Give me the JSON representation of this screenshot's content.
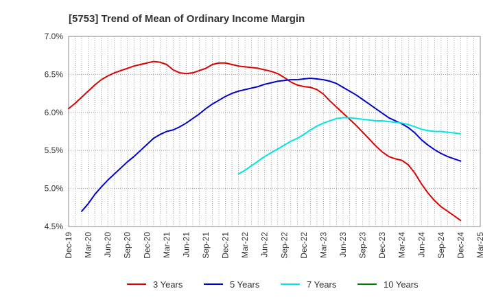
{
  "chart_data": {
    "type": "line",
    "title": "[5753]  Trend of Mean of Ordinary Income Margin",
    "xlabel": "",
    "ylabel": "",
    "x": [
      "Dec-19",
      "Mar-20",
      "Jun-20",
      "Sep-20",
      "Dec-20",
      "Mar-21",
      "Jun-21",
      "Sep-21",
      "Dec-21",
      "Mar-22",
      "Jun-22",
      "Sep-22",
      "Dec-22",
      "Mar-23",
      "Jun-23",
      "Sep-23",
      "Dec-23",
      "Mar-24",
      "Jun-24",
      "Sep-24",
      "Dec-24",
      "Mar-25"
    ],
    "ylim": [
      4.5,
      7.0
    ],
    "yticks": [
      4.5,
      5.0,
      5.5,
      6.0,
      6.5,
      7.0
    ],
    "ytick_labels": [
      "4.5%",
      "5.0%",
      "5.5%",
      "6.0%",
      "6.5%",
      "7.0%"
    ],
    "grid": true,
    "legend_position": "bottom",
    "series": [
      {
        "name": "3 Years",
        "color": "#dd0000",
        "points": [
          [
            "Dec-19",
            6.05
          ],
          [
            "Jan-20",
            6.12
          ],
          [
            "Feb-20",
            6.2
          ],
          [
            "Mar-20",
            6.28
          ],
          [
            "Apr-20",
            6.36
          ],
          [
            "May-20",
            6.43
          ],
          [
            "Jun-20",
            6.48
          ],
          [
            "Jul-20",
            6.52
          ],
          [
            "Aug-20",
            6.55
          ],
          [
            "Sep-20",
            6.58
          ],
          [
            "Oct-20",
            6.61
          ],
          [
            "Nov-20",
            6.63
          ],
          [
            "Dec-20",
            6.65
          ],
          [
            "Jan-21",
            6.67
          ],
          [
            "Feb-21",
            6.66
          ],
          [
            "Mar-21",
            6.63
          ],
          [
            "Apr-21",
            6.56
          ],
          [
            "May-21",
            6.52
          ],
          [
            "Jun-21",
            6.51
          ],
          [
            "Jul-21",
            6.52
          ],
          [
            "Aug-21",
            6.55
          ],
          [
            "Sep-21",
            6.58
          ],
          [
            "Oct-21",
            6.63
          ],
          [
            "Nov-21",
            6.65
          ],
          [
            "Dec-21",
            6.65
          ],
          [
            "Jan-22",
            6.63
          ],
          [
            "Feb-22",
            6.61
          ],
          [
            "Mar-22",
            6.6
          ],
          [
            "Apr-22",
            6.59
          ],
          [
            "May-22",
            6.58
          ],
          [
            "Jun-22",
            6.56
          ],
          [
            "Jul-22",
            6.54
          ],
          [
            "Aug-22",
            6.51
          ],
          [
            "Sep-22",
            6.46
          ],
          [
            "Oct-22",
            6.4
          ],
          [
            "Nov-22",
            6.36
          ],
          [
            "Dec-22",
            6.34
          ],
          [
            "Jan-23",
            6.33
          ],
          [
            "Feb-23",
            6.3
          ],
          [
            "Mar-23",
            6.24
          ],
          [
            "Apr-23",
            6.15
          ],
          [
            "May-23",
            6.07
          ],
          [
            "Jun-23",
            5.99
          ],
          [
            "Jul-23",
            5.91
          ],
          [
            "Aug-23",
            5.83
          ],
          [
            "Sep-23",
            5.74
          ],
          [
            "Oct-23",
            5.65
          ],
          [
            "Nov-23",
            5.56
          ],
          [
            "Dec-23",
            5.48
          ],
          [
            "Jan-24",
            5.42
          ],
          [
            "Feb-24",
            5.39
          ],
          [
            "Mar-24",
            5.37
          ],
          [
            "Apr-24",
            5.31
          ],
          [
            "May-24",
            5.2
          ],
          [
            "Jun-24",
            5.06
          ],
          [
            "Jul-24",
            4.94
          ],
          [
            "Aug-24",
            4.84
          ],
          [
            "Sep-24",
            4.76
          ],
          [
            "Oct-24",
            4.7
          ],
          [
            "Nov-24",
            4.64
          ],
          [
            "Dec-24",
            4.58
          ]
        ]
      },
      {
        "name": "5 Years",
        "color": "#0000cc",
        "points": [
          [
            "Feb-20",
            4.7
          ],
          [
            "Mar-20",
            4.8
          ],
          [
            "Apr-20",
            4.92
          ],
          [
            "May-20",
            5.02
          ],
          [
            "Jun-20",
            5.11
          ],
          [
            "Jul-20",
            5.19
          ],
          [
            "Aug-20",
            5.27
          ],
          [
            "Sep-20",
            5.35
          ],
          [
            "Oct-20",
            5.42
          ],
          [
            "Nov-20",
            5.5
          ],
          [
            "Dec-20",
            5.58
          ],
          [
            "Jan-21",
            5.66
          ],
          [
            "Feb-21",
            5.71
          ],
          [
            "Mar-21",
            5.75
          ],
          [
            "Apr-21",
            5.77
          ],
          [
            "May-21",
            5.81
          ],
          [
            "Jun-21",
            5.86
          ],
          [
            "Jul-21",
            5.92
          ],
          [
            "Aug-21",
            5.98
          ],
          [
            "Sep-21",
            6.05
          ],
          [
            "Oct-21",
            6.11
          ],
          [
            "Nov-21",
            6.16
          ],
          [
            "Dec-21",
            6.21
          ],
          [
            "Jan-22",
            6.25
          ],
          [
            "Feb-22",
            6.28
          ],
          [
            "Mar-22",
            6.3
          ],
          [
            "Apr-22",
            6.32
          ],
          [
            "May-22",
            6.34
          ],
          [
            "Jun-22",
            6.37
          ],
          [
            "Jul-22",
            6.39
          ],
          [
            "Aug-22",
            6.41
          ],
          [
            "Sep-22",
            6.42
          ],
          [
            "Oct-22",
            6.43
          ],
          [
            "Nov-22",
            6.43
          ],
          [
            "Dec-22",
            6.44
          ],
          [
            "Jan-23",
            6.45
          ],
          [
            "Feb-23",
            6.44
          ],
          [
            "Mar-23",
            6.43
          ],
          [
            "Apr-23",
            6.41
          ],
          [
            "May-23",
            6.38
          ],
          [
            "Jun-23",
            6.33
          ],
          [
            "Jul-23",
            6.28
          ],
          [
            "Aug-23",
            6.23
          ],
          [
            "Sep-23",
            6.17
          ],
          [
            "Oct-23",
            6.11
          ],
          [
            "Nov-23",
            6.05
          ],
          [
            "Dec-23",
            5.99
          ],
          [
            "Jan-24",
            5.93
          ],
          [
            "Feb-24",
            5.89
          ],
          [
            "Mar-24",
            5.85
          ],
          [
            "Apr-24",
            5.8
          ],
          [
            "May-24",
            5.73
          ],
          [
            "Jun-24",
            5.64
          ],
          [
            "Jul-24",
            5.57
          ],
          [
            "Aug-24",
            5.51
          ],
          [
            "Sep-24",
            5.46
          ],
          [
            "Oct-24",
            5.42
          ],
          [
            "Nov-24",
            5.39
          ],
          [
            "Dec-24",
            5.36
          ]
        ]
      },
      {
        "name": "7 Years",
        "color": "#00e5e5",
        "points": [
          [
            "Feb-22",
            5.19
          ],
          [
            "Mar-22",
            5.24
          ],
          [
            "Apr-22",
            5.3
          ],
          [
            "May-22",
            5.36
          ],
          [
            "Jun-22",
            5.42
          ],
          [
            "Jul-22",
            5.47
          ],
          [
            "Aug-22",
            5.52
          ],
          [
            "Sep-22",
            5.57
          ],
          [
            "Oct-22",
            5.62
          ],
          [
            "Nov-22",
            5.66
          ],
          [
            "Dec-22",
            5.71
          ],
          [
            "Jan-23",
            5.77
          ],
          [
            "Feb-23",
            5.82
          ],
          [
            "Mar-23",
            5.86
          ],
          [
            "Apr-23",
            5.89
          ],
          [
            "May-23",
            5.92
          ],
          [
            "Jun-23",
            5.93
          ],
          [
            "Jul-23",
            5.93
          ],
          [
            "Aug-23",
            5.92
          ],
          [
            "Sep-23",
            5.91
          ],
          [
            "Oct-23",
            5.9
          ],
          [
            "Nov-23",
            5.89
          ],
          [
            "Dec-23",
            5.89
          ],
          [
            "Jan-24",
            5.88
          ],
          [
            "Feb-24",
            5.87
          ],
          [
            "Mar-24",
            5.86
          ],
          [
            "Apr-24",
            5.84
          ],
          [
            "May-24",
            5.81
          ],
          [
            "Jun-24",
            5.78
          ],
          [
            "Jul-24",
            5.76
          ],
          [
            "Aug-24",
            5.75
          ],
          [
            "Sep-24",
            5.75
          ],
          [
            "Oct-24",
            5.74
          ],
          [
            "Nov-24",
            5.73
          ],
          [
            "Dec-24",
            5.72
          ]
        ]
      },
      {
        "name": "10 Years",
        "color": "#008000",
        "points": []
      }
    ]
  }
}
